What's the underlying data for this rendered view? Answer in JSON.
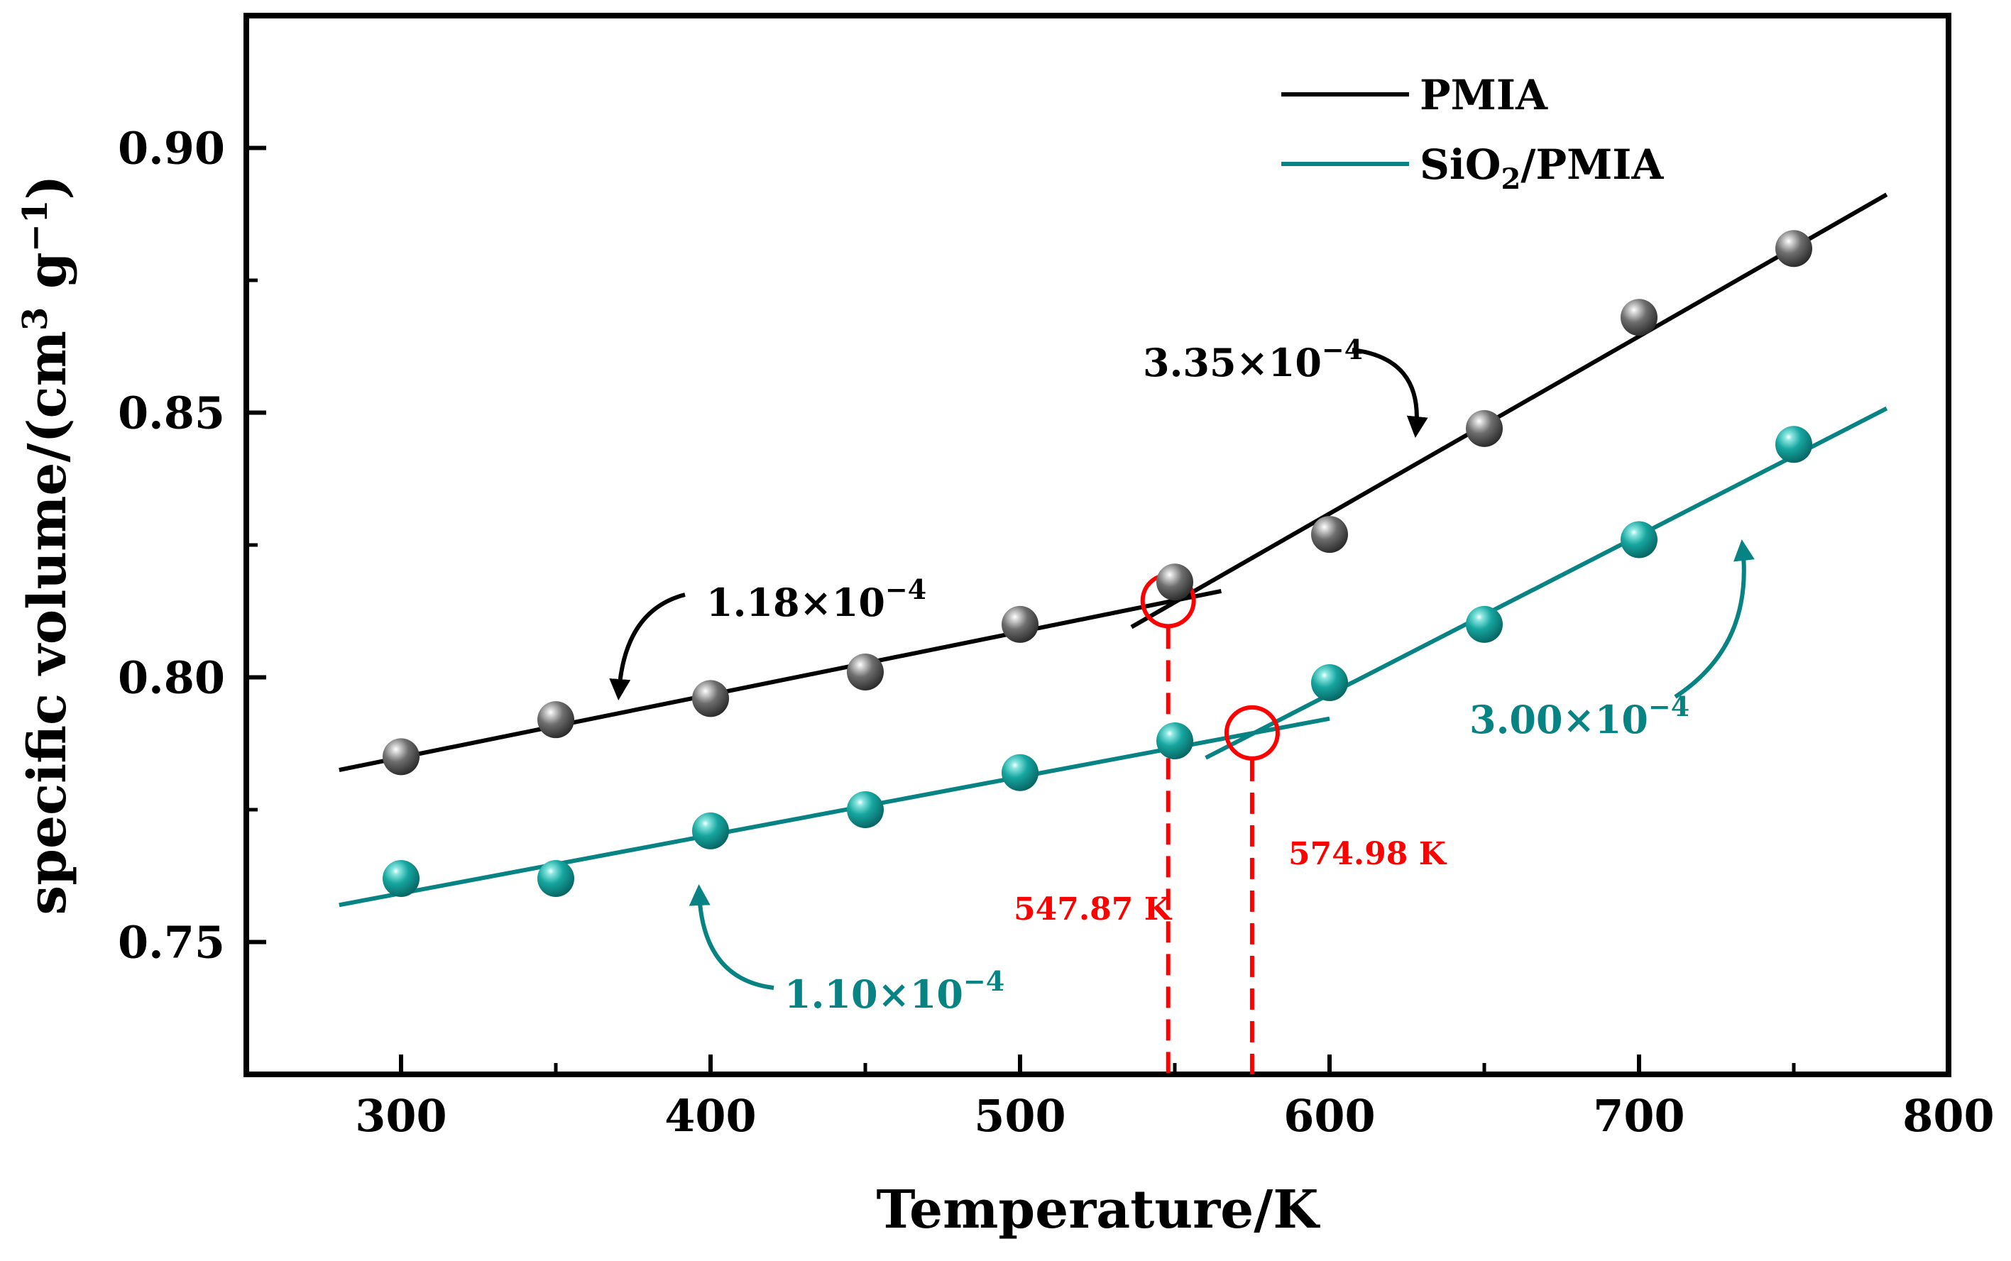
{
  "chart_data": {
    "type": "scatter",
    "title": "",
    "xlabel": "Temperature/K",
    "ylabel": "specific volume/(cm³ g⁻¹)",
    "ylabel_parts": {
      "prefix": "specific volume/(cm",
      "sup1": "3",
      "mid": " g",
      "sup2": "−1",
      "suffix": ")"
    },
    "xlim": [
      250,
      800
    ],
    "ylim": [
      0.725,
      0.925
    ],
    "xticks": [
      300,
      400,
      500,
      600,
      700,
      800
    ],
    "xtick_labels": [
      "300",
      "400",
      "500",
      "600",
      "700",
      "800"
    ],
    "yticks": [
      0.75,
      0.8,
      0.85,
      0.9
    ],
    "ytick_labels": [
      "0.75",
      "0.80",
      "0.85",
      "0.90"
    ],
    "grid": false,
    "legend_position": "top-right",
    "series": [
      {
        "name": "PMIA",
        "legend_label": {
          "main": "PMIA"
        },
        "color": "#000000",
        "marker": "sphere-gray",
        "x": [
          300,
          350,
          400,
          450,
          500,
          550,
          600,
          650,
          700,
          750
        ],
        "y": [
          0.785,
          0.792,
          0.796,
          0.801,
          0.81,
          0.818,
          0.827,
          0.847,
          0.868,
          0.881
        ],
        "fits": [
          {
            "x": [
              280,
              565
            ],
            "y": [
              0.7825,
              0.8163
            ]
          },
          {
            "x": [
              536,
              780
            ],
            "y": [
              0.8095,
              0.8912
            ]
          }
        ]
      },
      {
        "name": "SiO2/PMIA",
        "legend_label": {
          "prefix": "SiO",
          "sub": "2",
          "suffix": "/PMIA"
        },
        "color": "#078383",
        "marker": "sphere-teal",
        "x": [
          300,
          350,
          400,
          450,
          500,
          550,
          600,
          650,
          700,
          750
        ],
        "y": [
          0.762,
          0.762,
          0.771,
          0.775,
          0.782,
          0.788,
          0.799,
          0.81,
          0.826,
          0.844
        ],
        "fits": [
          {
            "x": [
              280,
              600
            ],
            "y": [
              0.757,
              0.7922
            ]
          },
          {
            "x": [
              560,
              780
            ],
            "y": [
              0.7848,
              0.8508
            ]
          }
        ]
      }
    ],
    "transitions": [
      {
        "x": 547.87,
        "y": 0.8145,
        "label": "547.87 K"
      },
      {
        "x": 574.98,
        "y": 0.7895,
        "label": "574.98 K"
      }
    ],
    "annotations": [
      {
        "id": "pmia-low",
        "prefix": "1.18×10",
        "sup": "−4",
        "color": "#000000"
      },
      {
        "id": "pmia-high",
        "prefix": "3.35×10",
        "sup": "−4",
        "color": "#000000"
      },
      {
        "id": "sio2-low",
        "prefix": "1.10×10",
        "sup": "−4",
        "color": "#078383"
      },
      {
        "id": "sio2-high",
        "prefix": "3.00×10",
        "sup": "−4",
        "color": "#078383"
      }
    ]
  }
}
